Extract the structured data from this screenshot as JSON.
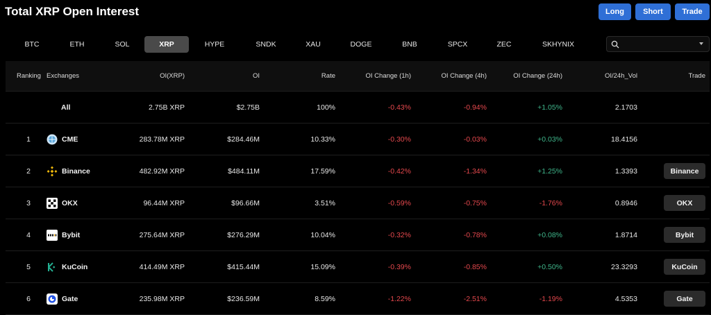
{
  "title": "Total XRP Open Interest",
  "actions": {
    "long": "Long",
    "short": "Short",
    "trade": "Trade"
  },
  "tabs": [
    "BTC",
    "ETH",
    "SOL",
    "XRP",
    "HYPE",
    "SNDK",
    "XAU",
    "DOGE",
    "BNB",
    "SPCX",
    "ZEC",
    "SKHYNIX"
  ],
  "active_tab": "XRP",
  "search": {
    "value": ""
  },
  "colors": {
    "accent": "#2f6fd6",
    "negative": "#e5484d",
    "positive": "#3fb68b"
  },
  "columns": {
    "ranking": "Ranking",
    "exchanges": "Exchanges",
    "oi_xrp": "OI(XRP)",
    "oi": "OI",
    "rate": "Rate",
    "chg_1h": "OI Change (1h)",
    "chg_4h": "OI Change (4h)",
    "chg_24h": "OI Change (24h)",
    "oi_vol": "OI/24h_Vol",
    "trade": "Trade"
  },
  "rows": [
    {
      "rank": "",
      "exchange": "All",
      "icon": "",
      "oi_xrp": "2.75B XRP",
      "oi": "$2.75B",
      "rate": "100%",
      "chg_1h": "-0.43%",
      "chg_4h": "-0.94%",
      "chg_24h": "+1.05%",
      "oi_vol": "2.1703",
      "trade": ""
    },
    {
      "rank": "1",
      "exchange": "CME",
      "icon": "cme-icon",
      "oi_xrp": "283.78M XRP",
      "oi": "$284.46M",
      "rate": "10.33%",
      "chg_1h": "-0.30%",
      "chg_4h": "-0.03%",
      "chg_24h": "+0.03%",
      "oi_vol": "18.4156",
      "trade": ""
    },
    {
      "rank": "2",
      "exchange": "Binance",
      "icon": "binance-icon",
      "oi_xrp": "482.92M XRP",
      "oi": "$484.11M",
      "rate": "17.59%",
      "chg_1h": "-0.42%",
      "chg_4h": "-1.34%",
      "chg_24h": "+1.25%",
      "oi_vol": "1.3393",
      "trade": "Binance"
    },
    {
      "rank": "3",
      "exchange": "OKX",
      "icon": "okx-icon",
      "oi_xrp": "96.44M XRP",
      "oi": "$96.66M",
      "rate": "3.51%",
      "chg_1h": "-0.59%",
      "chg_4h": "-0.75%",
      "chg_24h": "-1.76%",
      "oi_vol": "0.8946",
      "trade": "OKX"
    },
    {
      "rank": "4",
      "exchange": "Bybit",
      "icon": "bybit-icon",
      "oi_xrp": "275.64M XRP",
      "oi": "$276.29M",
      "rate": "10.04%",
      "chg_1h": "-0.32%",
      "chg_4h": "-0.78%",
      "chg_24h": "+0.08%",
      "oi_vol": "1.8714",
      "trade": "Bybit"
    },
    {
      "rank": "5",
      "exchange": "KuCoin",
      "icon": "kucoin-icon",
      "oi_xrp": "414.49M XRP",
      "oi": "$415.44M",
      "rate": "15.09%",
      "chg_1h": "-0.39%",
      "chg_4h": "-0.85%",
      "chg_24h": "+0.50%",
      "oi_vol": "23.3293",
      "trade": "KuCoin"
    },
    {
      "rank": "6",
      "exchange": "Gate",
      "icon": "gate-icon",
      "oi_xrp": "235.98M XRP",
      "oi": "$236.59M",
      "rate": "8.59%",
      "chg_1h": "-1.22%",
      "chg_4h": "-2.51%",
      "chg_24h": "-1.19%",
      "oi_vol": "4.5353",
      "trade": "Gate"
    }
  ]
}
